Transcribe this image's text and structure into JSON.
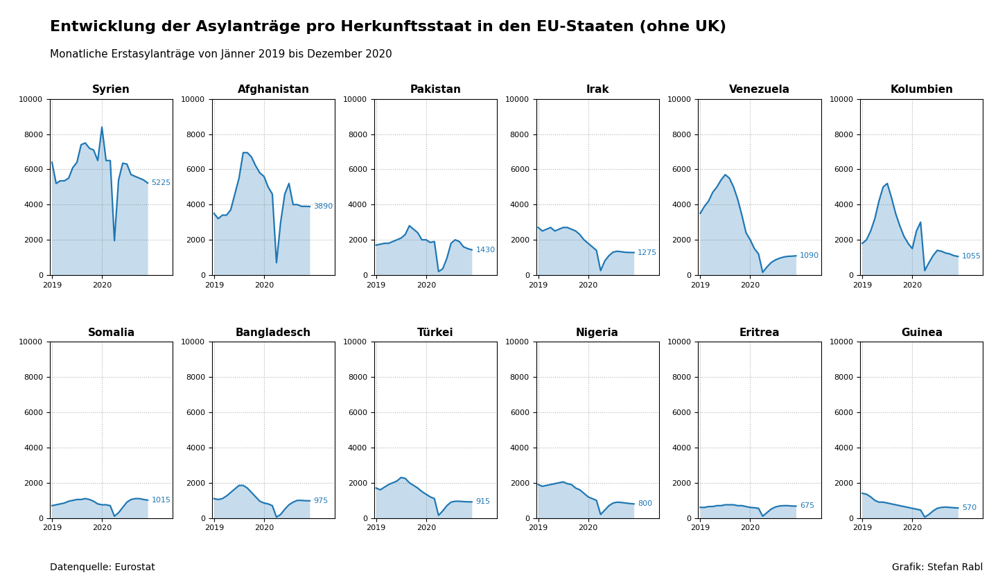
{
  "title": "Entwicklung der Asylanträge pro Herkunftsstaat in den EU-Staaten (ohne UK)",
  "subtitle": "Monatliche Erstasylanträge von Jänner 2019 bis Dezember 2020",
  "annotations": [
    "Datenquelle: Eurostat",
    "Grafik: Stefan Rabl"
  ],
  "chart_data": [
    {
      "type": "area",
      "title": "Syrien",
      "categories": [
        "2019",
        null,
        null,
        null,
        null,
        null,
        null,
        null,
        null,
        null,
        null,
        null,
        "2020",
        null,
        null,
        null,
        null,
        null,
        null,
        null,
        null,
        null,
        null,
        null
      ],
      "values": [
        6400,
        5200,
        5350,
        5350,
        5500,
        6100,
        6400,
        7400,
        7500,
        7200,
        7100,
        6500,
        8400,
        6500,
        6500,
        1950,
        5400,
        6350,
        6300,
        5700,
        5600,
        5500,
        5400,
        5225
      ],
      "value_labels": [
        null,
        null,
        null,
        null,
        null,
        null,
        null,
        null,
        null,
        null,
        null,
        null,
        null,
        null,
        null,
        null,
        null,
        null,
        null,
        null,
        null,
        null,
        null,
        "5225"
      ],
      "ylim": [
        0,
        10000
      ],
      "yticks": [
        0,
        2000,
        4000,
        6000,
        8000,
        10000
      ],
      "grid": true
    },
    {
      "type": "area",
      "title": "Afghanistan",
      "categories": [
        "2019",
        null,
        null,
        null,
        null,
        null,
        null,
        null,
        null,
        null,
        null,
        null,
        "2020",
        null,
        null,
        null,
        null,
        null,
        null,
        null,
        null,
        null,
        null,
        null
      ],
      "values": [
        3500,
        3200,
        3400,
        3400,
        3700,
        4600,
        5500,
        6950,
        6950,
        6700,
        6200,
        5800,
        5600,
        5000,
        4600,
        700,
        3000,
        4600,
        5200,
        4000,
        4000,
        3900,
        3900,
        3890
      ],
      "value_labels": [
        null,
        null,
        null,
        null,
        null,
        null,
        null,
        null,
        null,
        null,
        null,
        null,
        null,
        null,
        null,
        null,
        null,
        null,
        null,
        null,
        null,
        null,
        null,
        "3890"
      ],
      "ylim": [
        0,
        10000
      ],
      "yticks": [
        0,
        2000,
        4000,
        6000,
        8000,
        10000
      ],
      "grid": true
    },
    {
      "type": "area",
      "title": "Pakistan",
      "categories": [
        "2019",
        null,
        null,
        null,
        null,
        null,
        null,
        null,
        null,
        null,
        null,
        null,
        "2020",
        null,
        null,
        null,
        null,
        null,
        null,
        null,
        null,
        null,
        null,
        null
      ],
      "values": [
        1700,
        1750,
        1800,
        1800,
        1900,
        2000,
        2100,
        2300,
        2800,
        2600,
        2400,
        2000,
        2000,
        1850,
        1900,
        200,
        350,
        950,
        1800,
        2000,
        1900,
        1600,
        1500,
        1430
      ],
      "value_labels": [
        null,
        null,
        null,
        null,
        null,
        null,
        null,
        null,
        null,
        null,
        null,
        null,
        null,
        null,
        null,
        null,
        null,
        null,
        null,
        null,
        null,
        null,
        null,
        "1430"
      ],
      "ylim": [
        0,
        10000
      ],
      "yticks": [
        0,
        2000,
        4000,
        6000,
        8000,
        10000
      ],
      "grid": true
    },
    {
      "type": "area",
      "title": "Irak",
      "categories": [
        "2019",
        null,
        null,
        null,
        null,
        null,
        null,
        null,
        null,
        null,
        null,
        null,
        "2020",
        null,
        null,
        null,
        null,
        null,
        null,
        null,
        null,
        null,
        null,
        null
      ],
      "values": [
        2700,
        2500,
        2600,
        2700,
        2500,
        2600,
        2700,
        2700,
        2600,
        2500,
        2300,
        2000,
        1800,
        1600,
        1400,
        250,
        800,
        1100,
        1300,
        1350,
        1320,
        1290,
        1280,
        1275
      ],
      "value_labels": [
        null,
        null,
        null,
        null,
        null,
        null,
        null,
        null,
        null,
        null,
        null,
        null,
        null,
        null,
        null,
        null,
        null,
        null,
        null,
        null,
        null,
        null,
        null,
        "1275"
      ],
      "ylim": [
        0,
        10000
      ],
      "yticks": [
        0,
        2000,
        4000,
        6000,
        8000,
        10000
      ],
      "grid": true
    },
    {
      "type": "area",
      "title": "Venezuela",
      "categories": [
        "2019",
        null,
        null,
        null,
        null,
        null,
        null,
        null,
        null,
        null,
        null,
        null,
        "2020",
        null,
        null,
        null,
        null,
        null,
        null,
        null,
        null,
        null,
        null,
        null
      ],
      "values": [
        3500,
        3900,
        4200,
        4700,
        5000,
        5400,
        5700,
        5500,
        5000,
        4300,
        3400,
        2400,
        2000,
        1500,
        1200,
        150,
        450,
        700,
        850,
        950,
        1020,
        1060,
        1070,
        1090
      ],
      "value_labels": [
        null,
        null,
        null,
        null,
        null,
        null,
        null,
        null,
        null,
        null,
        null,
        null,
        null,
        null,
        null,
        null,
        null,
        null,
        null,
        null,
        null,
        null,
        null,
        "1090"
      ],
      "ylim": [
        0,
        10000
      ],
      "yticks": [
        0,
        2000,
        4000,
        6000,
        8000,
        10000
      ],
      "grid": true
    },
    {
      "type": "area",
      "title": "Kolumbien",
      "categories": [
        "2019",
        null,
        null,
        null,
        null,
        null,
        null,
        null,
        null,
        null,
        null,
        null,
        "2020",
        null,
        null,
        null,
        null,
        null,
        null,
        null,
        null,
        null,
        null,
        null
      ],
      "values": [
        1800,
        2000,
        2500,
        3200,
        4200,
        5000,
        5200,
        4400,
        3500,
        2800,
        2200,
        1800,
        1500,
        2500,
        3000,
        250,
        700,
        1100,
        1400,
        1350,
        1250,
        1200,
        1100,
        1055
      ],
      "value_labels": [
        null,
        null,
        null,
        null,
        null,
        null,
        null,
        null,
        null,
        null,
        null,
        null,
        null,
        null,
        null,
        null,
        null,
        null,
        null,
        null,
        null,
        null,
        null,
        "1055"
      ],
      "ylim": [
        0,
        10000
      ],
      "yticks": [
        0,
        2000,
        4000,
        6000,
        8000,
        10000
      ],
      "grid": true
    },
    {
      "type": "area",
      "title": "Somalia",
      "categories": [
        "2019",
        null,
        null,
        null,
        null,
        null,
        null,
        null,
        null,
        null,
        null,
        null,
        "2020",
        null,
        null,
        null,
        null,
        null,
        null,
        null,
        null,
        null,
        null,
        null
      ],
      "values": [
        700,
        750,
        800,
        850,
        950,
        1000,
        1050,
        1050,
        1100,
        1050,
        950,
        800,
        750,
        750,
        700,
        100,
        300,
        600,
        900,
        1050,
        1100,
        1100,
        1050,
        1015
      ],
      "value_labels": [
        null,
        null,
        null,
        null,
        null,
        null,
        null,
        null,
        null,
        null,
        null,
        null,
        null,
        null,
        null,
        null,
        null,
        null,
        null,
        null,
        null,
        null,
        null,
        "1015"
      ],
      "ylim": [
        0,
        10000
      ],
      "yticks": [
        0,
        2000,
        4000,
        6000,
        8000,
        10000
      ],
      "grid": true
    },
    {
      "type": "area",
      "title": "Bangladesch",
      "categories": [
        "2019",
        null,
        null,
        null,
        null,
        null,
        null,
        null,
        null,
        null,
        null,
        null,
        "2020",
        null,
        null,
        null,
        null,
        null,
        null,
        null,
        null,
        null,
        null,
        null
      ],
      "values": [
        1100,
        1050,
        1100,
        1250,
        1450,
        1650,
        1850,
        1850,
        1700,
        1450,
        1200,
        950,
        850,
        800,
        700,
        50,
        200,
        500,
        750,
        900,
        1000,
        1000,
        980,
        975
      ],
      "value_labels": [
        null,
        null,
        null,
        null,
        null,
        null,
        null,
        null,
        null,
        null,
        null,
        null,
        null,
        null,
        null,
        null,
        null,
        null,
        null,
        null,
        null,
        null,
        null,
        "975"
      ],
      "ylim": [
        0,
        10000
      ],
      "yticks": [
        0,
        2000,
        4000,
        6000,
        8000,
        10000
      ],
      "grid": true
    },
    {
      "type": "area",
      "title": "Türkei",
      "categories": [
        "2019",
        null,
        null,
        null,
        null,
        null,
        null,
        null,
        null,
        null,
        null,
        null,
        "2020",
        null,
        null,
        null,
        null,
        null,
        null,
        null,
        null,
        null,
        null,
        null
      ],
      "values": [
        1700,
        1600,
        1750,
        1900,
        2000,
        2100,
        2300,
        2250,
        2000,
        1850,
        1700,
        1500,
        1350,
        1200,
        1100,
        150,
        400,
        700,
        900,
        950,
        950,
        930,
        920,
        915
      ],
      "value_labels": [
        null,
        null,
        null,
        null,
        null,
        null,
        null,
        null,
        null,
        null,
        null,
        null,
        null,
        null,
        null,
        null,
        null,
        null,
        null,
        null,
        null,
        null,
        null,
        "915"
      ],
      "ylim": [
        0,
        10000
      ],
      "yticks": [
        0,
        2000,
        4000,
        6000,
        8000,
        10000
      ],
      "grid": true
    },
    {
      "type": "area",
      "title": "Nigeria",
      "categories": [
        "2019",
        null,
        null,
        null,
        null,
        null,
        null,
        null,
        null,
        null,
        null,
        null,
        "2020",
        null,
        null,
        null,
        null,
        null,
        null,
        null,
        null,
        null,
        null,
        null
      ],
      "values": [
        1900,
        1800,
        1850,
        1900,
        1950,
        2000,
        2050,
        1950,
        1900,
        1700,
        1600,
        1400,
        1200,
        1100,
        1000,
        200,
        450,
        700,
        850,
        900,
        880,
        850,
        820,
        800
      ],
      "value_labels": [
        null,
        null,
        null,
        null,
        null,
        null,
        null,
        null,
        null,
        null,
        null,
        null,
        null,
        null,
        null,
        null,
        null,
        null,
        null,
        null,
        null,
        null,
        null,
        "800"
      ],
      "ylim": [
        0,
        10000
      ],
      "yticks": [
        0,
        2000,
        4000,
        6000,
        8000,
        10000
      ],
      "grid": true
    },
    {
      "type": "area",
      "title": "Eritrea",
      "categories": [
        "2019",
        null,
        null,
        null,
        null,
        null,
        null,
        null,
        null,
        null,
        null,
        null,
        "2020",
        null,
        null,
        null,
        null,
        null,
        null,
        null,
        null,
        null,
        null,
        null
      ],
      "values": [
        600,
        600,
        650,
        650,
        700,
        700,
        750,
        750,
        750,
        700,
        700,
        650,
        600,
        580,
        550,
        100,
        300,
        500,
        620,
        680,
        700,
        700,
        680,
        675
      ],
      "value_labels": [
        null,
        null,
        null,
        null,
        null,
        null,
        null,
        null,
        null,
        null,
        null,
        null,
        null,
        null,
        null,
        null,
        null,
        null,
        null,
        null,
        null,
        null,
        null,
        "675"
      ],
      "ylim": [
        0,
        10000
      ],
      "yticks": [
        0,
        2000,
        4000,
        6000,
        8000,
        10000
      ],
      "grid": true
    },
    {
      "type": "area",
      "title": "Guinea",
      "categories": [
        "2019",
        null,
        null,
        null,
        null,
        null,
        null,
        null,
        null,
        null,
        null,
        null,
        "2020",
        null,
        null,
        null,
        null,
        null,
        null,
        null,
        null,
        null,
        null,
        null
      ],
      "values": [
        1400,
        1350,
        1200,
        1000,
        900,
        900,
        850,
        800,
        750,
        700,
        650,
        600,
        550,
        500,
        450,
        50,
        200,
        400,
        550,
        600,
        620,
        600,
        580,
        570
      ],
      "value_labels": [
        null,
        null,
        null,
        null,
        null,
        null,
        null,
        null,
        null,
        null,
        null,
        null,
        null,
        null,
        null,
        null,
        null,
        null,
        null,
        null,
        null,
        null,
        null,
        "570"
      ],
      "ylim": [
        0,
        10000
      ],
      "yticks": [
        0,
        2000,
        4000,
        6000,
        8000,
        10000
      ],
      "grid": true
    }
  ]
}
